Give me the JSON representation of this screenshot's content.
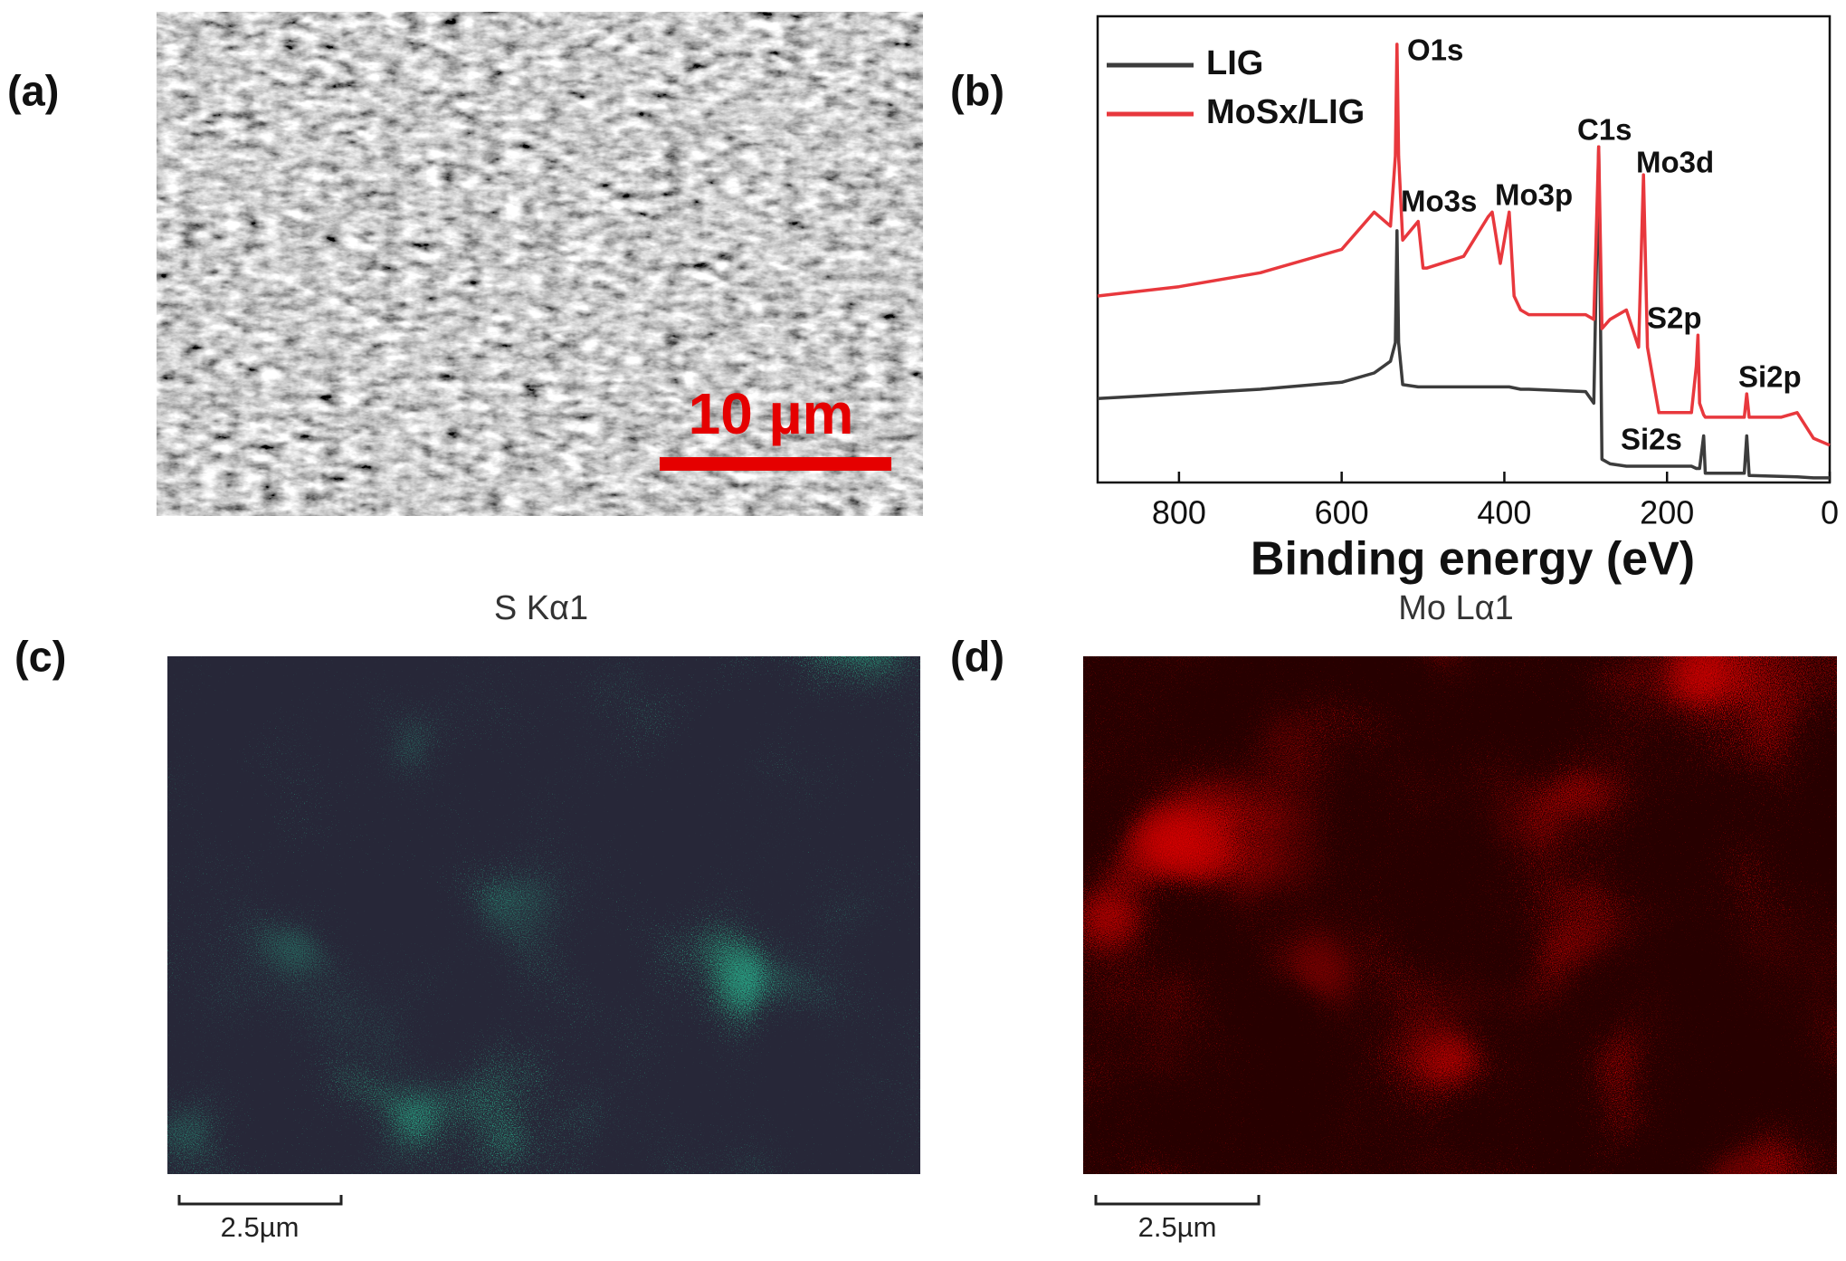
{
  "panel_labels": [
    "(a)",
    "(b)",
    "(c)",
    "(d)"
  ],
  "sem_scale_bar": "10 µm",
  "map_titles": [
    "S Kα1",
    "Mo Lα1"
  ],
  "map_scale_bars": [
    "2.5µm",
    "2.5µm"
  ],
  "chart_data": {
    "type": "line",
    "x_label": "Binding energy (eV)",
    "x": [
      900,
      800,
      700,
      600,
      560,
      540,
      534,
      532,
      530,
      525,
      506,
      500,
      495,
      450,
      420,
      415,
      405,
      394,
      388,
      380,
      370,
      300,
      290,
      284,
      280,
      270,
      250,
      235,
      229,
      224,
      210,
      170,
      164,
      162,
      160,
      155,
      153,
      150,
      120,
      105,
      102,
      99,
      60,
      40,
      20,
      0
    ],
    "xlim": [
      900,
      0
    ],
    "xticks": [
      800,
      600,
      400,
      200,
      0
    ],
    "ylim": [
      0,
      100
    ],
    "legend": "upper left",
    "series": [
      {
        "name": "LIG",
        "color": "#3c3c3c",
        "values": [
          18,
          19,
          20,
          21.5,
          23.5,
          26,
          30,
          54,
          30,
          21,
          20.5,
          20.5,
          20.5,
          20.5,
          20.5,
          20.5,
          20.5,
          20.5,
          20.3,
          20,
          20,
          19.5,
          17,
          72,
          5,
          4,
          3.5,
          3.5,
          3.5,
          3.5,
          3.5,
          3.5,
          3,
          3,
          3,
          10,
          2,
          2,
          2,
          2,
          10,
          1.5,
          1.3,
          1.2,
          1,
          1
        ]
      },
      {
        "name": "MoSx/LIG",
        "color": "#e8383d",
        "values": [
          40,
          42,
          45,
          50,
          58,
          55,
          70,
          94,
          70,
          52,
          56,
          46,
          46,
          48.5,
          57,
          58,
          47,
          58,
          40,
          37,
          36,
          36,
          35,
          72,
          33,
          35,
          37,
          29,
          66,
          29,
          15,
          15,
          25,
          31.6,
          17,
          14.5,
          14,
          14,
          14,
          14,
          19,
          14,
          14,
          15,
          9.5,
          8
        ]
      }
    ],
    "annotations": [
      "O1s",
      "Mo3s",
      "Mo3p",
      "C1s",
      "Mo3d",
      "S2p",
      "Si2s",
      "Si2p"
    ]
  }
}
